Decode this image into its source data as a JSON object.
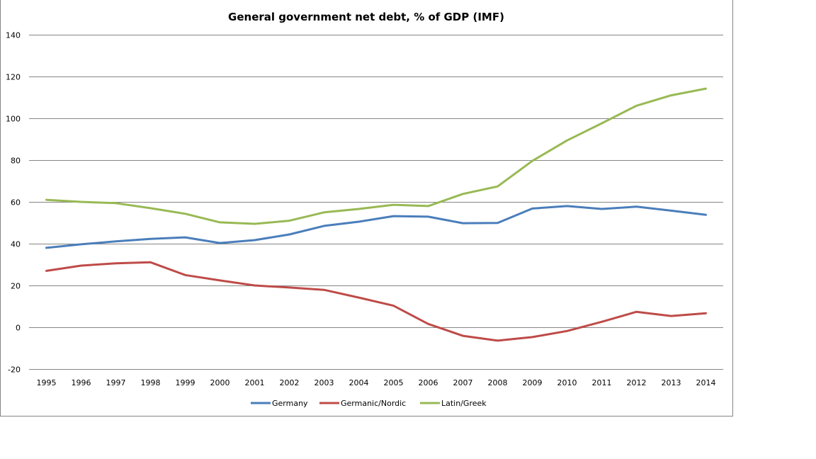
{
  "chart_data": {
    "type": "line",
    "title": "General government net debt, % of GDP (IMF)",
    "xlabel": "",
    "ylabel": "",
    "ylim": [
      -20,
      140
    ],
    "yticks": [
      -20,
      0,
      20,
      40,
      60,
      80,
      100,
      120,
      140
    ],
    "ytick_labels": [
      "-20",
      "0",
      "20",
      "40",
      "60",
      "80",
      "100",
      "120",
      "140"
    ],
    "grid": true,
    "legend_position": "bottom",
    "categories": [
      "1995",
      "1996",
      "1997",
      "1998",
      "1999",
      "2000",
      "2001",
      "2002",
      "2003",
      "2004",
      "2005",
      "2006",
      "2007",
      "2008",
      "2009",
      "2010",
      "2011",
      "2012",
      "2013",
      "2014"
    ],
    "series": [
      {
        "name": "Germany",
        "color": "#4a7ebb",
        "values": [
          38.0,
          39.7,
          41.1,
          42.3,
          43.0,
          40.3,
          41.7,
          44.4,
          48.5,
          50.5,
          53.2,
          52.9,
          49.8,
          49.9,
          56.8,
          58.0,
          56.6,
          57.7,
          55.8,
          53.8
        ]
      },
      {
        "name": "Germanic/Nordic",
        "color": "#be4b48",
        "values": [
          27.0,
          29.5,
          30.6,
          31.1,
          25.0,
          22.4,
          20.0,
          19.0,
          17.9,
          14.2,
          10.3,
          1.6,
          -4.1,
          -6.4,
          -4.7,
          -1.8,
          2.6,
          7.4,
          5.4,
          6.7
        ]
      },
      {
        "name": "Latin/Greek",
        "color": "#98b954",
        "values": [
          61.0,
          60.0,
          59.4,
          57.0,
          54.3,
          50.2,
          49.5,
          51.0,
          55.0,
          56.6,
          58.6,
          58.0,
          63.8,
          67.4,
          79.6,
          89.4,
          97.6,
          106.0,
          111.0,
          114.2
        ]
      }
    ]
  }
}
